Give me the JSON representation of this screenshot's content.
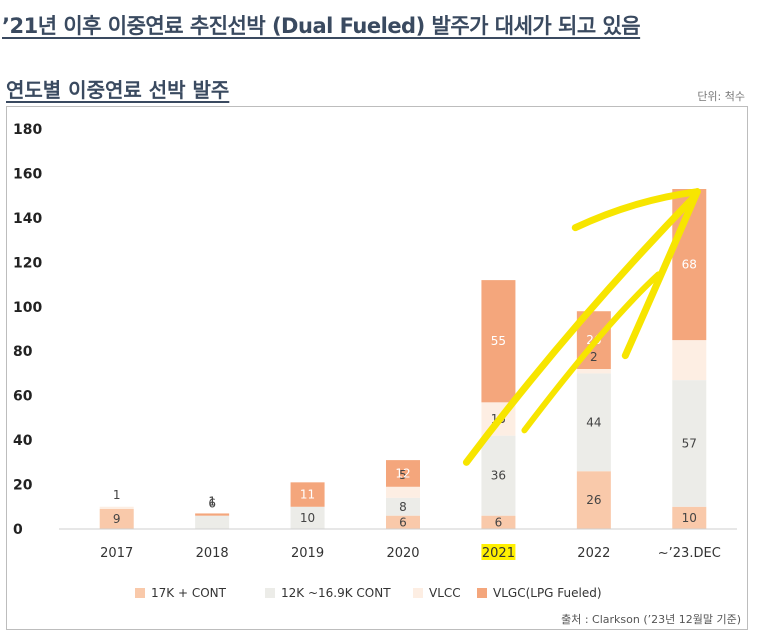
{
  "headline": "’21년 이후 이중연료 추진선박 (Dual Fueled) 발주가 대세가 되고 있음",
  "unit_label": "단위: 척수",
  "source": "출처 : Clarkson (’23년 12월말 기준)",
  "chart_data": {
    "type": "bar",
    "stacked": true,
    "title": "연도별 이중연료 선박 발주",
    "categories": [
      "2017",
      "2018",
      "2019",
      "2020",
      "2021",
      "2022",
      "~’23.DEC"
    ],
    "ylim": [
      0,
      180
    ],
    "yticks": [
      0,
      20,
      40,
      60,
      80,
      100,
      120,
      140,
      160,
      180
    ],
    "grid": false,
    "legend": "bottom",
    "highlight_category": "2021",
    "series": [
      {
        "name": "17K + CONT",
        "color": "#f9c9aa",
        "values": [
          9,
          0,
          0,
          6,
          6,
          26,
          10
        ]
      },
      {
        "name": "12K ~16.9K CONT",
        "color": "#ecece8",
        "values": [
          0,
          6,
          10,
          8,
          36,
          44,
          57
        ]
      },
      {
        "name": "VLCC",
        "color": "#fdeee3",
        "values": [
          1,
          0,
          0,
          5,
          15,
          2,
          18
        ]
      },
      {
        "name": "VLGC(LPG Fueled)",
        "color": "#f4a67c",
        "values": [
          0,
          1,
          11,
          12,
          55,
          26,
          68
        ]
      }
    ],
    "data_labels": [
      {
        "category": "2017",
        "series": "17K + CONT",
        "text": "9"
      },
      {
        "category": "2017",
        "series": "VLCC",
        "text": "1"
      },
      {
        "category": "2018",
        "series": "12K ~16.9K CONT",
        "text": "6"
      },
      {
        "category": "2018",
        "series": "VLGC(LPG Fueled)",
        "text": "1"
      },
      {
        "category": "2019",
        "series": "12K ~16.9K CONT",
        "text": "10"
      },
      {
        "category": "2019",
        "series": "VLGC(LPG Fueled)",
        "text": "11"
      },
      {
        "category": "2020",
        "series": "17K + CONT",
        "text": "6"
      },
      {
        "category": "2020",
        "series": "12K ~16.9K CONT",
        "text": "8"
      },
      {
        "category": "2020",
        "series": "VLCC",
        "text": "5"
      },
      {
        "category": "2020",
        "series": "VLGC(LPG Fueled)",
        "text": "12"
      },
      {
        "category": "2021",
        "series": "17K + CONT",
        "text": "6"
      },
      {
        "category": "2021",
        "series": "12K ~16.9K CONT",
        "text": "36"
      },
      {
        "category": "2021",
        "series": "VLCC",
        "text": "15"
      },
      {
        "category": "2021",
        "series": "VLGC(LPG Fueled)",
        "text": "55"
      },
      {
        "category": "2022",
        "series": "17K + CONT",
        "text": "26"
      },
      {
        "category": "2022",
        "series": "12K ~16.9K CONT",
        "text": "44"
      },
      {
        "category": "2022",
        "series": "VLCC",
        "text": "2"
      },
      {
        "category": "2022",
        "series": "VLGC(LPG Fueled)",
        "text": "26"
      },
      {
        "category": "~’23.DEC",
        "series": "17K + CONT",
        "text": "10"
      },
      {
        "category": "~’23.DEC",
        "series": "12K ~16.9K CONT",
        "text": "57"
      },
      {
        "category": "~’23.DEC",
        "series": "VLGC(LPG Fueled)",
        "text": "68"
      }
    ],
    "annotation": {
      "type": "hand-drawn-arrow",
      "color": "#f7e500",
      "from_category": "2021",
      "to_category": "~’23.DEC",
      "from_y": 30,
      "to_y": 150
    }
  }
}
